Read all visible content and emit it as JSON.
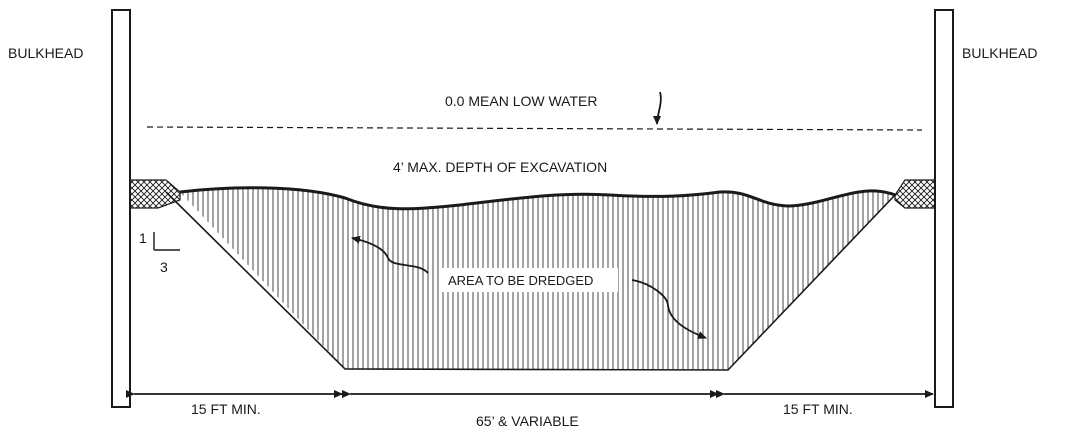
{
  "labels": {
    "bulkhead_left": "BULKHEAD",
    "bulkhead_right": "BULKHEAD",
    "mean_low_water": "0.0 MEAN LOW WATER",
    "max_depth": "4’ MAX. DEPTH OF EXCAVATION",
    "area": "AREA TO BE DREDGED",
    "slope_rise": "1",
    "slope_run": "3",
    "dim_left": "15 FT MIN.",
    "dim_center": "65’ & VARIABLE",
    "dim_right": "15 FT MIN."
  },
  "colors": {
    "line": "#1a1a1a",
    "background": "#ffffff"
  }
}
